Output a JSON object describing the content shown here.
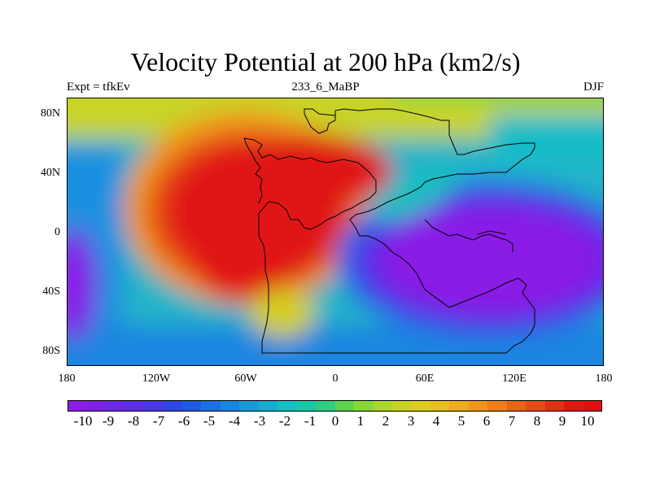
{
  "title": "Velocity Potential at 200 hPa (km2/s)",
  "subtitle_left": "Expt = tfkEv",
  "subtitle_center": "233_6_MaBP",
  "subtitle_right": "DJF",
  "y_ticks": [
    "80N",
    "40N",
    "0",
    "40S",
    "80S"
  ],
  "x_ticks": [
    "180",
    "120W",
    "60W",
    "0",
    "60E",
    "120E",
    "180"
  ],
  "colorbar": {
    "labels": [
      "-10",
      "-9",
      "-8",
      "-7",
      "-6",
      "-5",
      "-4",
      "-3",
      "-2",
      "-1",
      "0",
      "1",
      "2",
      "3",
      "4",
      "5",
      "6",
      "7",
      "8",
      "9",
      "10"
    ],
    "colors": [
      "#8b1fe6",
      "#7d22e6",
      "#6c28e6",
      "#5c2ee6",
      "#4a36e6",
      "#2e46e6",
      "#1e5ae6",
      "#1a70e6",
      "#1a86e0",
      "#1a9ad6",
      "#16aecc",
      "#12c0c0",
      "#18c8a6",
      "#30cc80",
      "#5cd250",
      "#86d638",
      "#aad62a",
      "#c6d424",
      "#dcce20",
      "#e6c01e",
      "#ecac1c",
      "#ee961a",
      "#ee7e18",
      "#ea6418",
      "#e64a18",
      "#e23014",
      "#e01a12",
      "#e01010"
    ]
  },
  "chart_data": {
    "type": "heatmap",
    "title": "Velocity Potential at 200 hPa (km2/s)",
    "variable": "velocity potential",
    "level": "200 hPa",
    "units": "km2/s",
    "experiment": "tfkEv",
    "period": "233_6_MaBP",
    "season": "DJF",
    "xlim": [
      -180,
      180
    ],
    "ylim": [
      -90,
      90
    ],
    "x_ticks": [
      "180",
      "120W",
      "60W",
      "0",
      "60E",
      "120E",
      "180"
    ],
    "y_ticks": [
      "80N",
      "40N",
      "0",
      "40S",
      "80S"
    ],
    "color_levels": [
      -10,
      -9,
      -8,
      -7,
      -6,
      -5,
      -4,
      -3,
      -2,
      -1,
      0,
      1,
      2,
      3,
      4,
      5,
      6,
      7,
      8,
      9,
      10
    ],
    "features": [
      {
        "type": "maximum",
        "lon": -75,
        "lat": 20,
        "value": 10
      },
      {
        "type": "minimum",
        "lon": 95,
        "lat": -25,
        "value": -10
      },
      {
        "type": "minimum",
        "lon": -175,
        "lat": -40,
        "value": -9
      }
    ]
  }
}
